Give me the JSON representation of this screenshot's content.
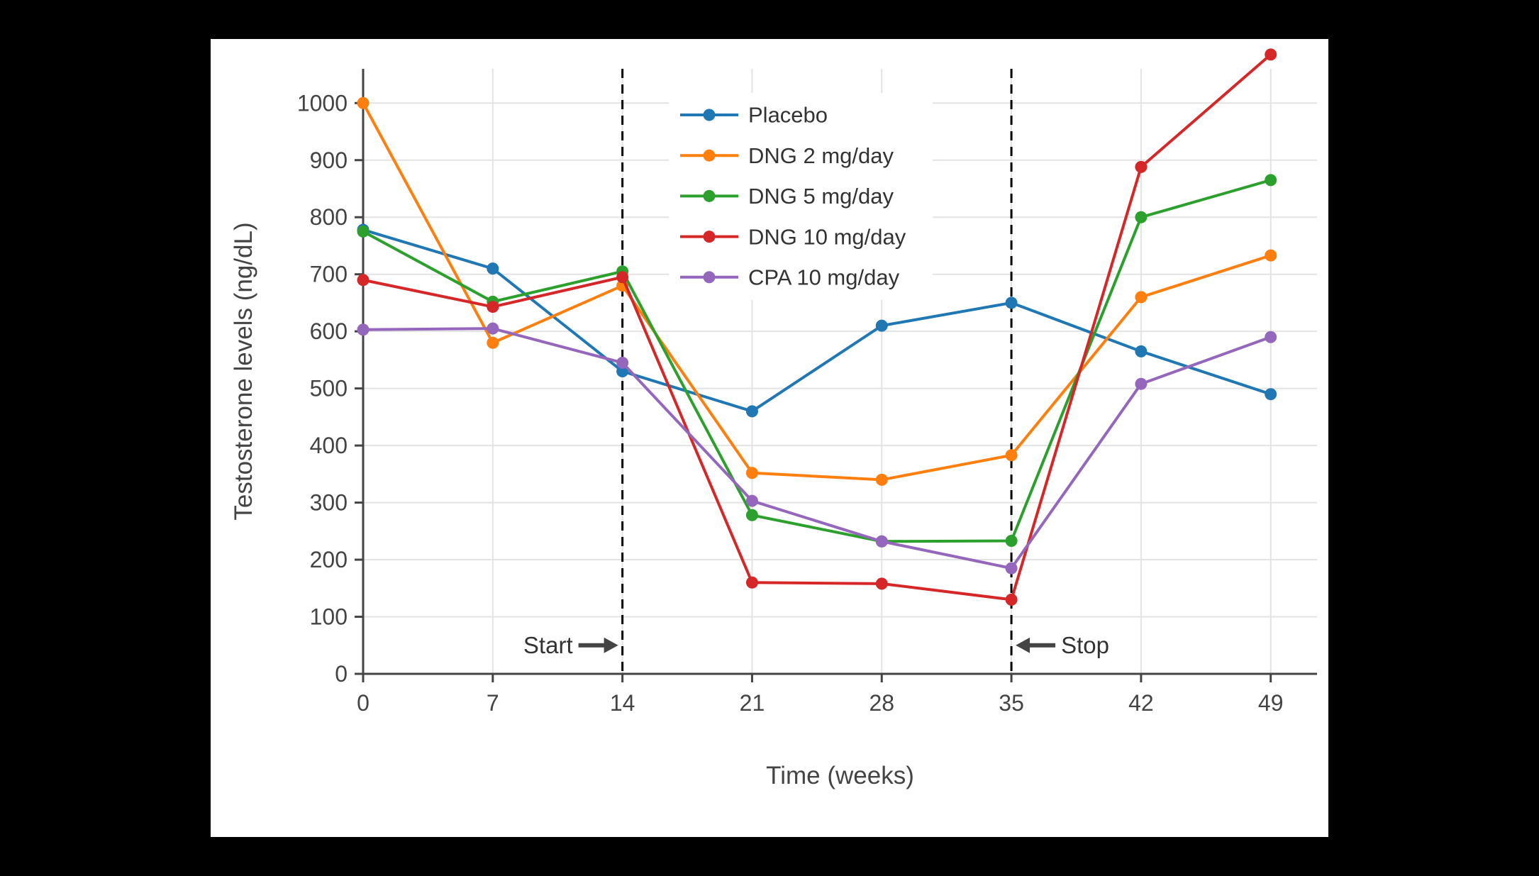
{
  "page": {
    "background": "#000000",
    "card_background": "#ffffff"
  },
  "chart_data": {
    "type": "line",
    "title": "",
    "xlabel": "Time (weeks)",
    "ylabel": "Testosterone levels (ng/dL)",
    "x": [
      0,
      7,
      14,
      21,
      28,
      35,
      42,
      49
    ],
    "xlim": [
      0,
      51.5
    ],
    "ylim": [
      0,
      1060
    ],
    "yticks": [
      0,
      100,
      200,
      300,
      400,
      500,
      600,
      700,
      800,
      900,
      1000
    ],
    "grid": true,
    "legend_position": "inside-top-center",
    "marker": "circle",
    "series": [
      {
        "name": "Placebo",
        "color": "#1f77b4",
        "values": [
          778,
          710,
          530,
          460,
          610,
          650,
          565,
          490
        ]
      },
      {
        "name": "DNG 2 mg/day",
        "color": "#ff7f0e",
        "values": [
          1000,
          580,
          680,
          352,
          340,
          383,
          660,
          733
        ]
      },
      {
        "name": "DNG 5 mg/day",
        "color": "#2ca02c",
        "values": [
          775,
          652,
          705,
          278,
          232,
          233,
          800,
          865
        ]
      },
      {
        "name": "DNG 10 mg/day",
        "color": "#d62728",
        "values": [
          690,
          643,
          695,
          160,
          158,
          130,
          888,
          1085
        ]
      },
      {
        "name": "CPA 10 mg/day",
        "color": "#9467bd",
        "values": [
          603,
          605,
          545,
          303,
          232,
          185,
          508,
          590
        ]
      }
    ],
    "vlines": [
      {
        "x": 14,
        "style": "dashed",
        "color": "#000000"
      },
      {
        "x": 35,
        "style": "dashed",
        "color": "#000000"
      }
    ],
    "annotations": [
      {
        "text": "Start",
        "arrow": "right",
        "x": 14,
        "y": 50
      },
      {
        "text": "Stop",
        "arrow": "left",
        "x": 35,
        "y": 50
      }
    ],
    "colors": {
      "grid": "#e3e3e3",
      "axis": "#444444",
      "tick_label": "#444444",
      "axis_title": "#444444",
      "annotation_text": "#333333",
      "annotation_arrow": "#444444",
      "legend_text": "#333333"
    }
  }
}
